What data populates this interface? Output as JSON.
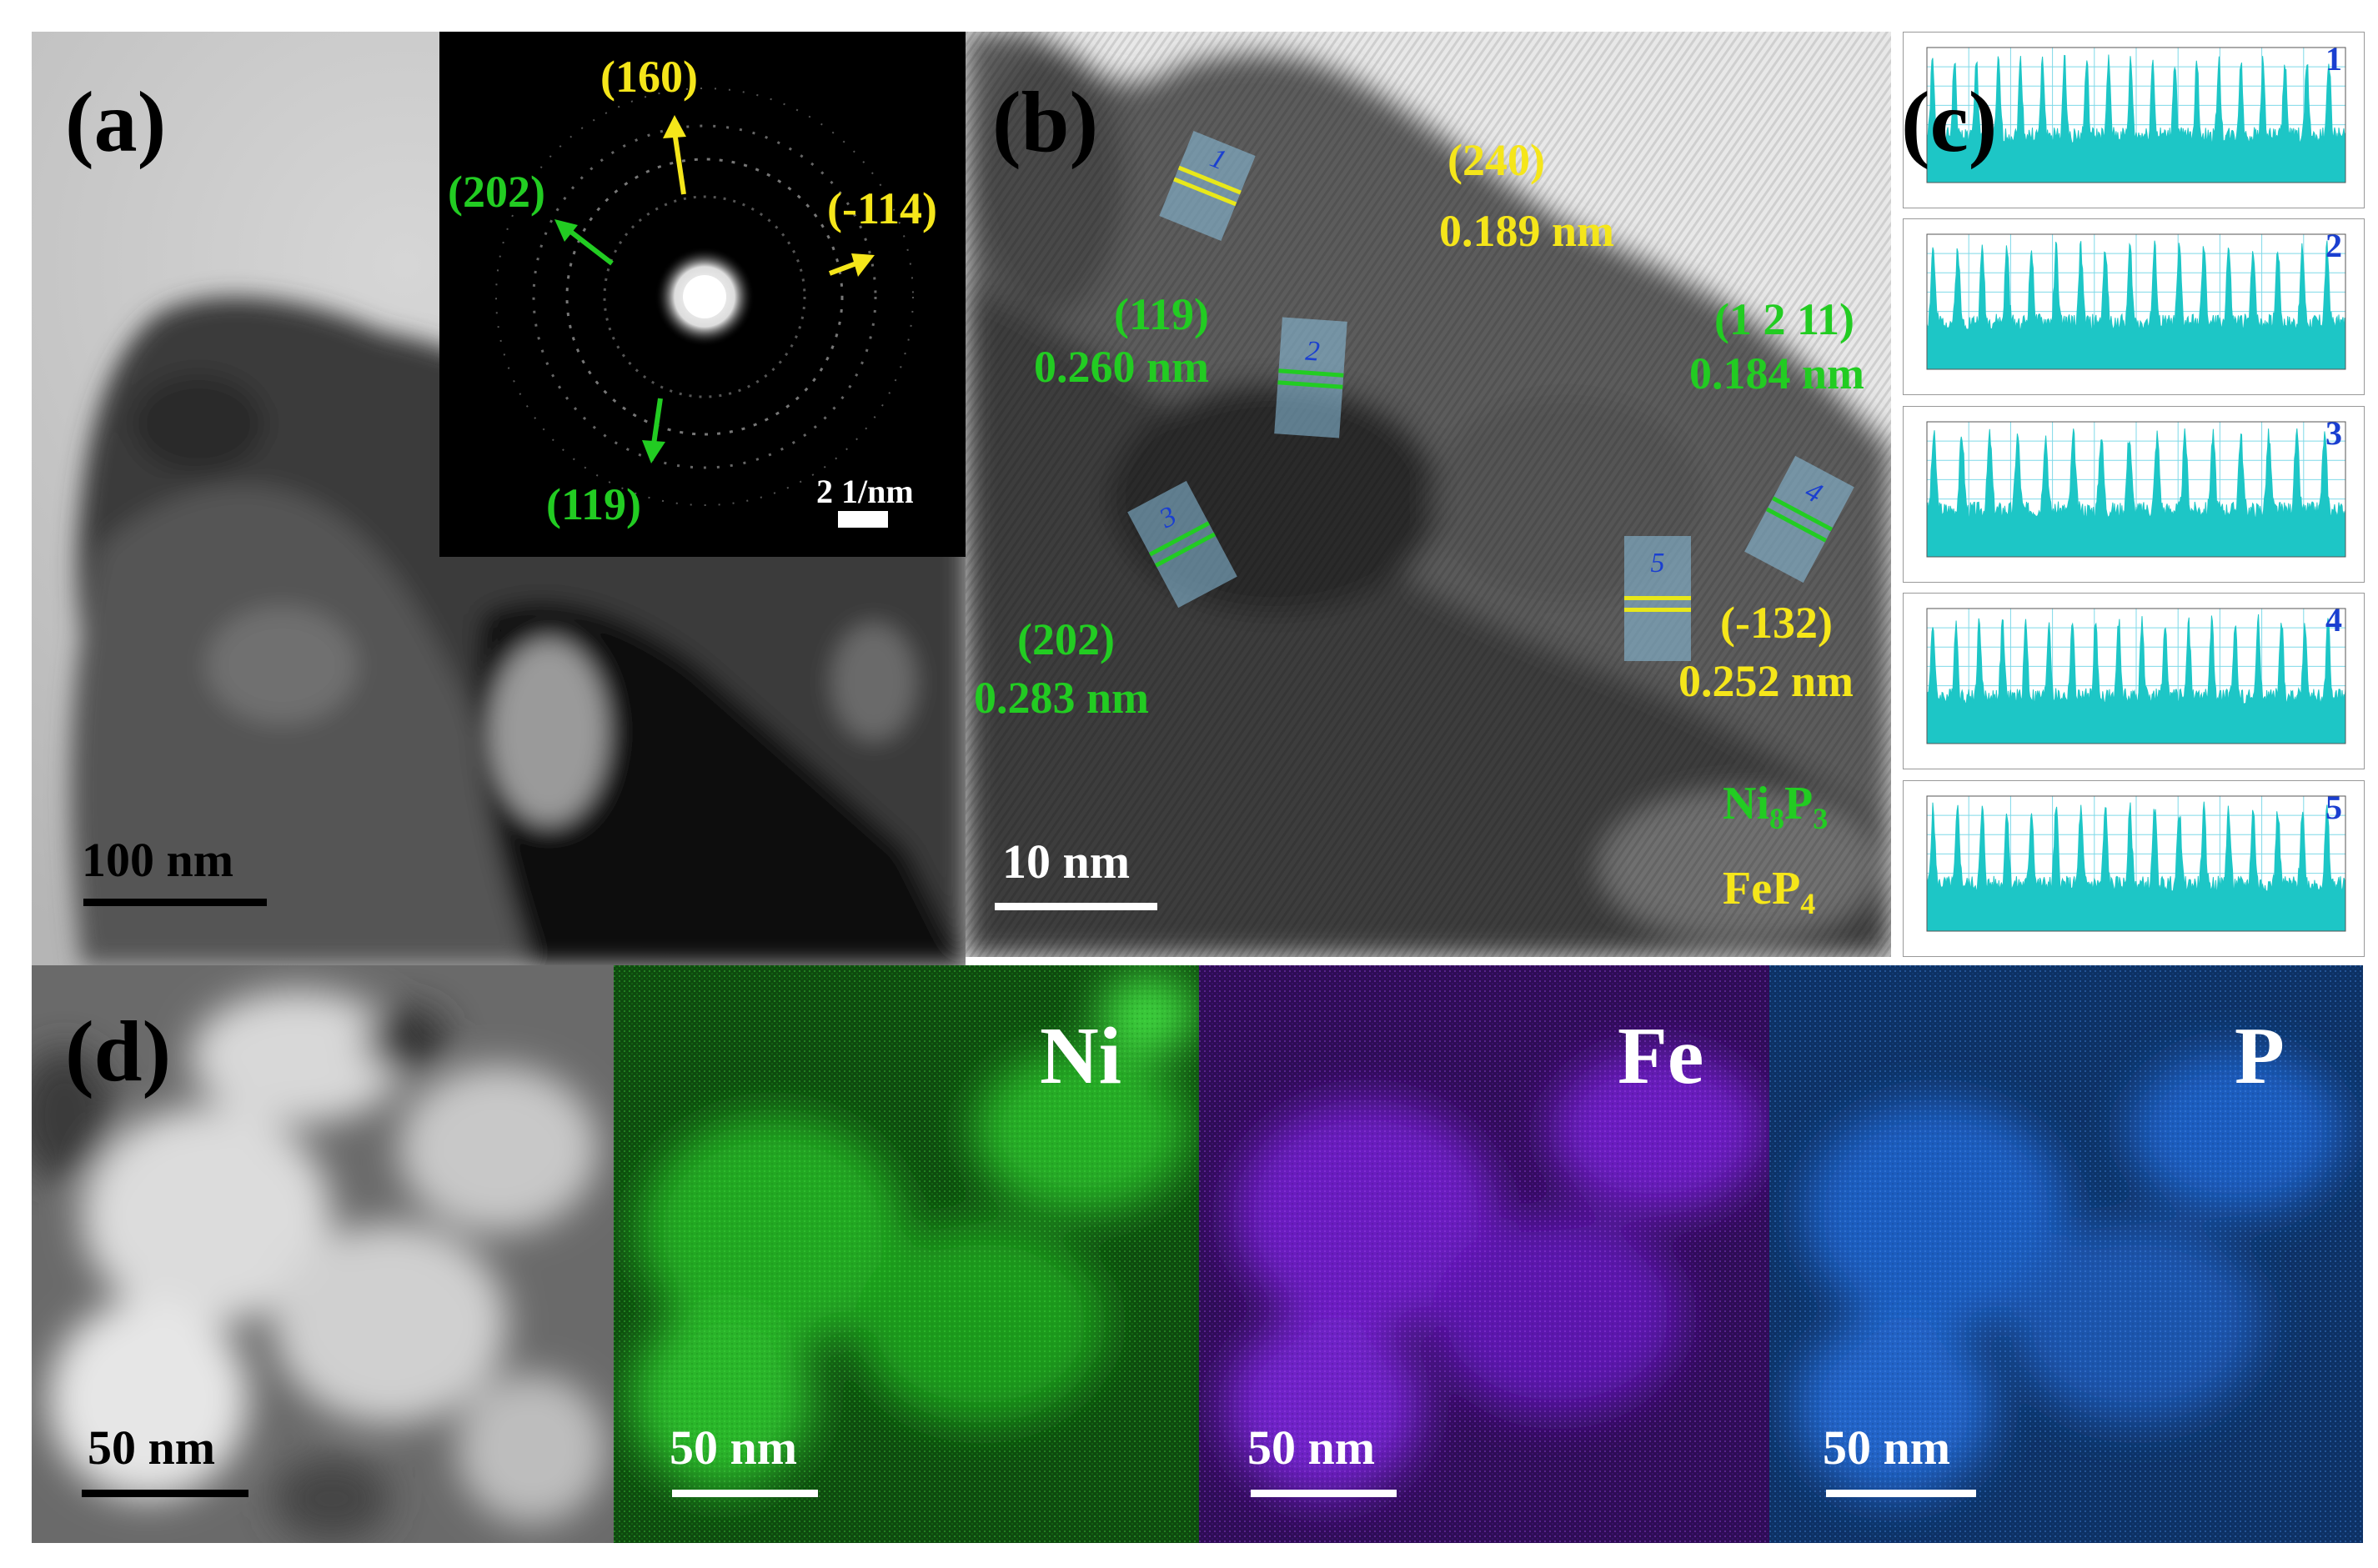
{
  "panel_a": {
    "label": "(a)",
    "scale_bar": "100 nm",
    "saed": {
      "scale_bar": "2 1/nm",
      "planes": [
        {
          "text": "(160)",
          "color": "#f5e61a"
        },
        {
          "text": "(-114)",
          "color": "#f5e61a"
        },
        {
          "text": "(202)",
          "color": "#22cc22"
        },
        {
          "text": "(119)",
          "color": "#22cc22"
        }
      ]
    }
  },
  "panel_b": {
    "label": "(b)",
    "scale_bar": "10 nm",
    "annotations": [
      {
        "plane": "(240)",
        "spacing": "0.189 nm",
        "color": "#f5e61a"
      },
      {
        "plane": "(119)",
        "spacing": "0.260 nm",
        "color": "#22cc22"
      },
      {
        "plane": "(1 2 11)",
        "spacing": "0.184 nm",
        "color": "#22cc22"
      },
      {
        "plane": "(202)",
        "spacing": "0.283 nm",
        "color": "#22cc22"
      },
      {
        "plane": "(-132)",
        "spacing": "0.252 nm",
        "color": "#f5e61a"
      }
    ],
    "regions": [
      "1",
      "2",
      "3",
      "4",
      "5"
    ],
    "legend": {
      "ni8p3": {
        "main": "Ni",
        "sub1": "8",
        "mid": "P",
        "sub2": "3",
        "color": "#22cc22"
      },
      "fep4": {
        "main": "FeP",
        "sub": "4",
        "color": "#f5e61a"
      }
    }
  },
  "panel_c": {
    "label": "(c)",
    "profiles": [
      "1",
      "2",
      "3",
      "4",
      "5"
    ],
    "line_color": "#1dc6c6"
  },
  "panel_d": {
    "label": "(d)",
    "maps": [
      {
        "element": "",
        "scale_bar": "50 nm",
        "color": "#000000"
      },
      {
        "element": "Ni",
        "scale_bar": "50 nm",
        "color": "#1fb51f"
      },
      {
        "element": "Fe",
        "scale_bar": "50 nm",
        "color": "#7a1fd6"
      },
      {
        "element": "P",
        "scale_bar": "50 nm",
        "color": "#1f62d6"
      }
    ]
  }
}
